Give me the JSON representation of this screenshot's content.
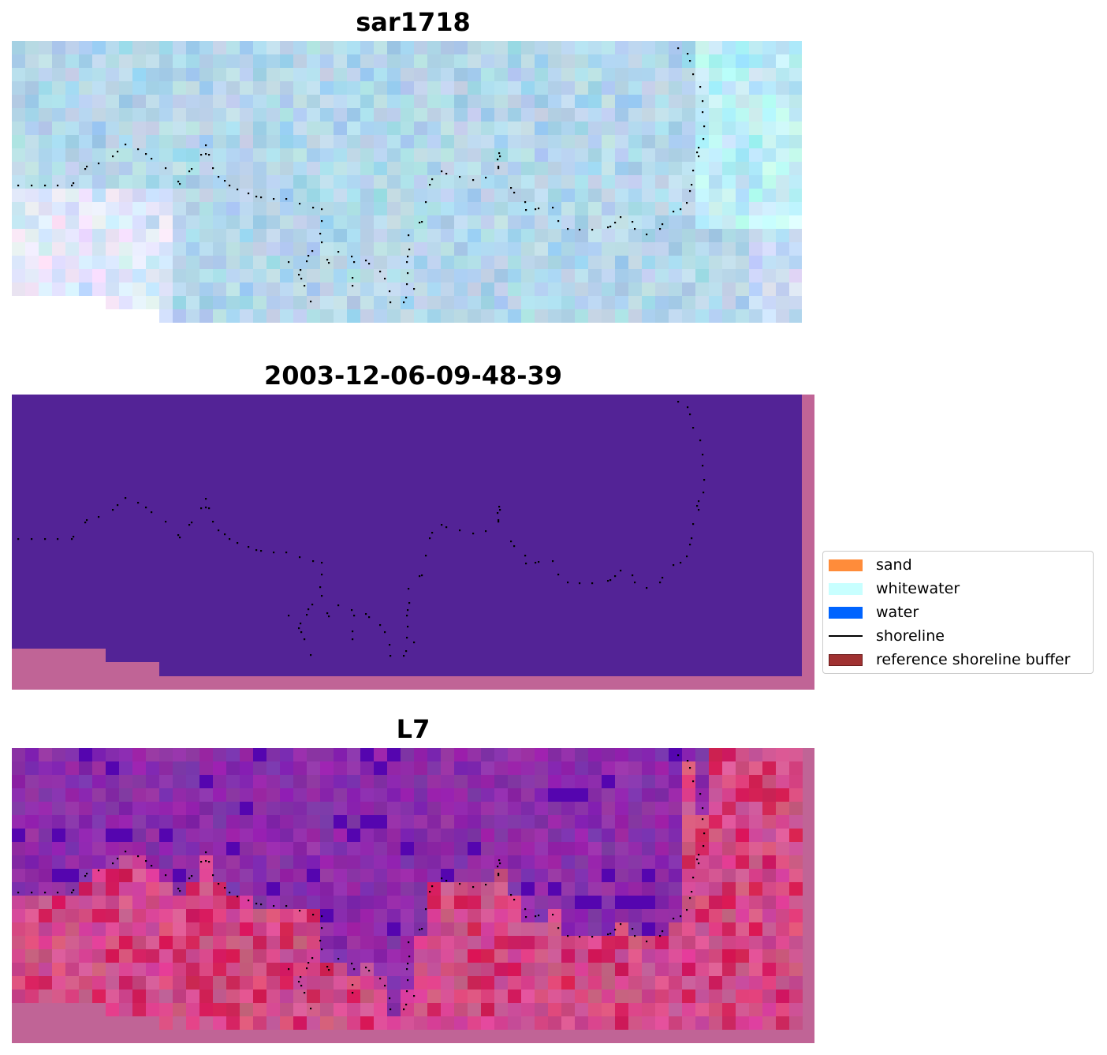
{
  "panels": [
    {
      "title": "sar1718",
      "kind": "rgb"
    },
    {
      "title": "2003-12-06-09-48-39",
      "kind": "classified"
    },
    {
      "title": "L7",
      "kind": "index"
    }
  ],
  "legend": {
    "items": [
      {
        "label": "sand",
        "color": "#ff8c3a",
        "type": "patch"
      },
      {
        "label": "whitewater",
        "color": "#c8ffff",
        "type": "patch"
      },
      {
        "label": "water",
        "color": "#0064ff",
        "type": "patch"
      },
      {
        "label": "shoreline",
        "color": "#000000",
        "type": "line"
      },
      {
        "label": "reference shoreline buffer",
        "color": "#a03232",
        "type": "patch"
      }
    ]
  },
  "colors": {
    "classified_fill": "#532396",
    "nodata": "#c06496",
    "shoreline": "#000000"
  }
}
